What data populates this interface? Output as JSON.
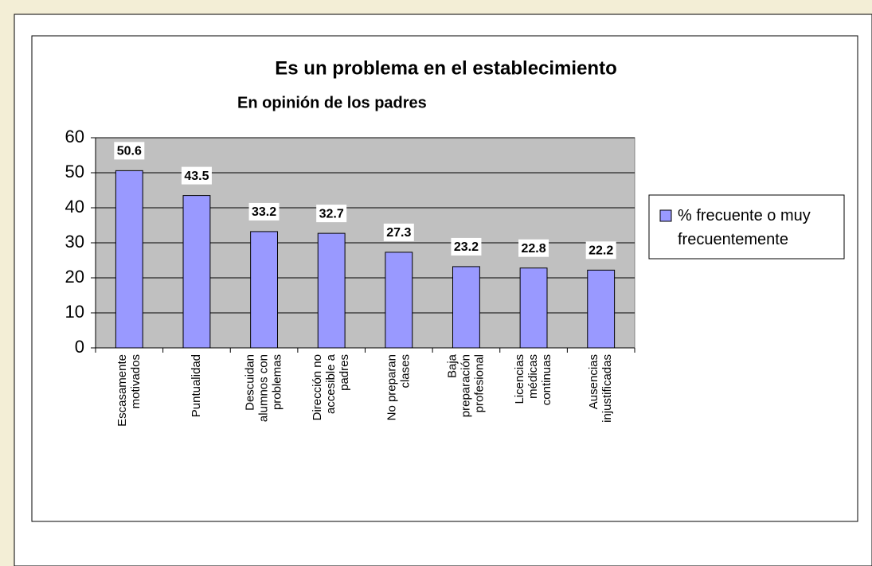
{
  "chart_data": {
    "type": "bar",
    "title": "Es un problema en el establecimiento",
    "subtitle": "En opinión de los padres",
    "categories": [
      [
        "Escasamente",
        "motivados"
      ],
      [
        "Puntualidad"
      ],
      [
        "Descuidan",
        "alumnos con",
        "problemas"
      ],
      [
        "Dirección no",
        "accesible a",
        "padres"
      ],
      [
        "No preparan",
        "clases"
      ],
      [
        "Baja",
        "preparación",
        "profesional"
      ],
      [
        "Licencias",
        "médicas",
        "continuas"
      ],
      [
        "Ausencias",
        "injustificadas"
      ]
    ],
    "series": [
      {
        "name": "% frecuente o muy frecuentemente",
        "color": "#9999ff",
        "values": [
          50.6,
          43.5,
          33.2,
          32.7,
          27.3,
          23.2,
          22.8,
          22.2
        ]
      }
    ],
    "ylim": [
      0,
      60
    ],
    "yticks": [
      0,
      10,
      20,
      30,
      40,
      50,
      60
    ],
    "grid": true,
    "legend": "right"
  }
}
